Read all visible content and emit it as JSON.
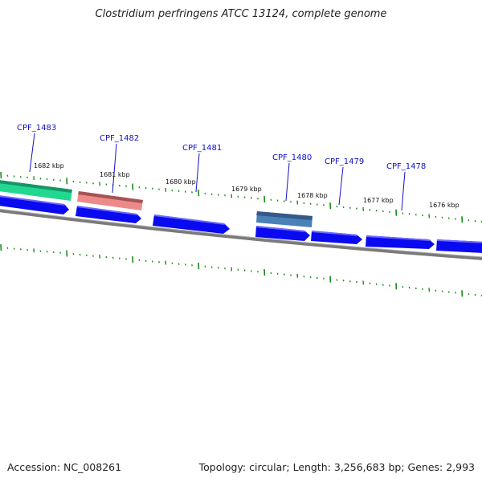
{
  "title": "Clostridium perfringens ATCC 13124, complete genome",
  "footer": {
    "accession": "Accession: NC_008261",
    "topology": "Topology: circular; Length: 3,256,683 bp; Genes: 2,993"
  },
  "gene_labels": [
    "CPF_1483",
    "CPF_1482",
    "CPF_1481",
    "CPF_1480",
    "CPF_1479",
    "CPF_1478"
  ],
  "kbp_labels": [
    "1682 kbp",
    "1681 kbp",
    "1680 kbp",
    "1679 kbp",
    "1678 kbp",
    "1677 kbp",
    "1676 kbp"
  ],
  "colors": {
    "cds": "#0a0af0",
    "feature_green": "#22d890",
    "feature_red": "#e87a7a",
    "feature_steelblue": "#4a80b8",
    "backbone": "#808080",
    "tick": "#1a8a1a",
    "gene_label": "#1010c8"
  }
}
